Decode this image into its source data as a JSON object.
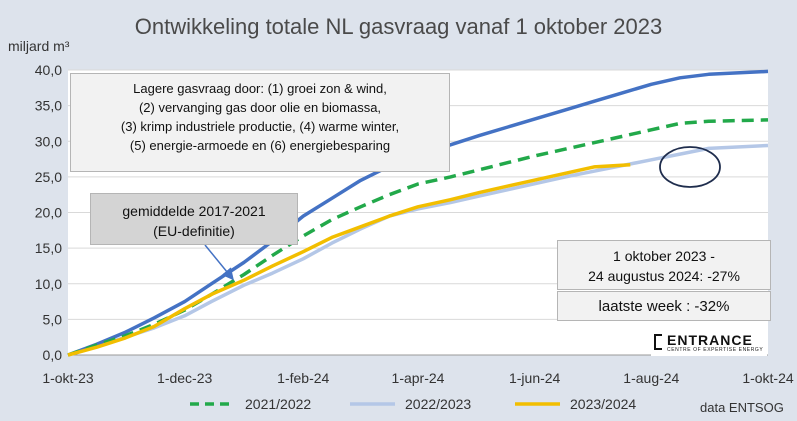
{
  "chart_data": {
    "type": "line",
    "title": "Ontwikkeling totale NL gasvraag vanaf 1 oktober 2023",
    "ylabel": "miljard m³",
    "xlabel": "",
    "ylim": [
      0,
      40
    ],
    "yticks": [
      "0,0",
      "5,0",
      "10,0",
      "15,0",
      "20,0",
      "25,0",
      "30,0",
      "35,0",
      "40,0"
    ],
    "xticks": [
      "1-okt-23",
      "1-dec-23",
      "1-feb-24",
      "1-apr-24",
      "1-jun-24",
      "1-aug-24",
      "1-okt-24"
    ],
    "x_unit": "days since 1 October",
    "series": [
      {
        "name": "gemiddelde 2017-2021",
        "color": "#4472c4",
        "style": "solid",
        "points": [
          [
            0,
            0
          ],
          [
            15,
            1.5
          ],
          [
            30,
            3.2
          ],
          [
            45,
            5.2
          ],
          [
            61,
            7.5
          ],
          [
            75,
            10.0
          ],
          [
            92,
            13.0
          ],
          [
            107,
            16.0
          ],
          [
            123,
            19.5
          ],
          [
            138,
            22.0
          ],
          [
            153,
            24.5
          ],
          [
            168,
            26.5
          ],
          [
            183,
            28.0
          ],
          [
            200,
            29.5
          ],
          [
            215,
            30.8
          ],
          [
            230,
            32.0
          ],
          [
            245,
            33.2
          ],
          [
            260,
            34.4
          ],
          [
            275,
            35.6
          ],
          [
            290,
            36.8
          ],
          [
            305,
            38.0
          ],
          [
            320,
            38.9
          ],
          [
            335,
            39.4
          ],
          [
            366,
            39.8
          ]
        ]
      },
      {
        "name": "2021/2022",
        "color": "#22a94a",
        "style": "dashed",
        "points": [
          [
            0,
            0
          ],
          [
            15,
            1.4
          ],
          [
            30,
            2.7
          ],
          [
            45,
            4.3
          ],
          [
            61,
            6.3
          ],
          [
            75,
            8.5
          ],
          [
            92,
            11.3
          ],
          [
            107,
            14.0
          ],
          [
            123,
            16.7
          ],
          [
            138,
            19.0
          ],
          [
            153,
            20.8
          ],
          [
            168,
            22.5
          ],
          [
            183,
            24.0
          ],
          [
            200,
            25.0
          ],
          [
            215,
            26.0
          ],
          [
            230,
            27.0
          ],
          [
            245,
            28.0
          ],
          [
            260,
            28.9
          ],
          [
            275,
            29.8
          ],
          [
            290,
            30.7
          ],
          [
            305,
            31.6
          ],
          [
            320,
            32.5
          ],
          [
            335,
            32.8
          ],
          [
            366,
            33.0
          ]
        ]
      },
      {
        "name": "2022/2023",
        "color": "#b4c7e7",
        "style": "solid",
        "points": [
          [
            0,
            0
          ],
          [
            15,
            1.2
          ],
          [
            30,
            2.5
          ],
          [
            45,
            3.8
          ],
          [
            61,
            5.5
          ],
          [
            75,
            7.5
          ],
          [
            92,
            9.8
          ],
          [
            107,
            11.5
          ],
          [
            123,
            13.5
          ],
          [
            138,
            15.7
          ],
          [
            153,
            17.7
          ],
          [
            168,
            19.5
          ],
          [
            183,
            20.5
          ],
          [
            200,
            21.4
          ],
          [
            215,
            22.3
          ],
          [
            230,
            23.2
          ],
          [
            245,
            24.1
          ],
          [
            260,
            25.0
          ],
          [
            275,
            25.8
          ],
          [
            290,
            26.6
          ],
          [
            305,
            27.4
          ],
          [
            320,
            28.2
          ],
          [
            335,
            29.0
          ],
          [
            366,
            29.4
          ]
        ]
      },
      {
        "name": "2023/2024",
        "color": "#f2be00",
        "style": "solid",
        "points": [
          [
            0,
            0
          ],
          [
            15,
            1.1
          ],
          [
            30,
            2.4
          ],
          [
            45,
            4.0
          ],
          [
            61,
            6.5
          ],
          [
            75,
            8.5
          ],
          [
            92,
            10.5
          ],
          [
            107,
            12.5
          ],
          [
            123,
            14.5
          ],
          [
            138,
            16.5
          ],
          [
            153,
            18.0
          ],
          [
            168,
            19.5
          ],
          [
            183,
            20.8
          ],
          [
            200,
            21.8
          ],
          [
            215,
            22.8
          ],
          [
            230,
            23.7
          ],
          [
            245,
            24.6
          ],
          [
            260,
            25.5
          ],
          [
            275,
            26.4
          ],
          [
            294,
            26.7
          ]
        ]
      }
    ],
    "legend": {
      "position": "bottom",
      "entries": [
        "2021/2022",
        "2022/2023",
        "2023/2024"
      ]
    }
  },
  "annotations": {
    "box1": [
      "Lagere gasvraag door: (1) groei zon & wind,",
      "(2) vervanging gas door olie en biomassa,",
      "(3) krimp industriele productie, (4) warme winter,",
      "(5) energie-armoede en (6) energiebesparing"
    ],
    "box2": [
      "gemiddelde 2017-2021",
      "(EU-definitie)"
    ],
    "box3": [
      "1 oktober 2023 -",
      "24 augustus 2024: -27%"
    ],
    "box4": "laatste week : -32%"
  },
  "source": "data ENTSOG",
  "logo": {
    "name": "ENTRANCE",
    "tagline": "CENTRE OF EXPERTISE ENERGY"
  },
  "colors": {
    "background": "#dde3ec",
    "plot": "#ffffff"
  }
}
